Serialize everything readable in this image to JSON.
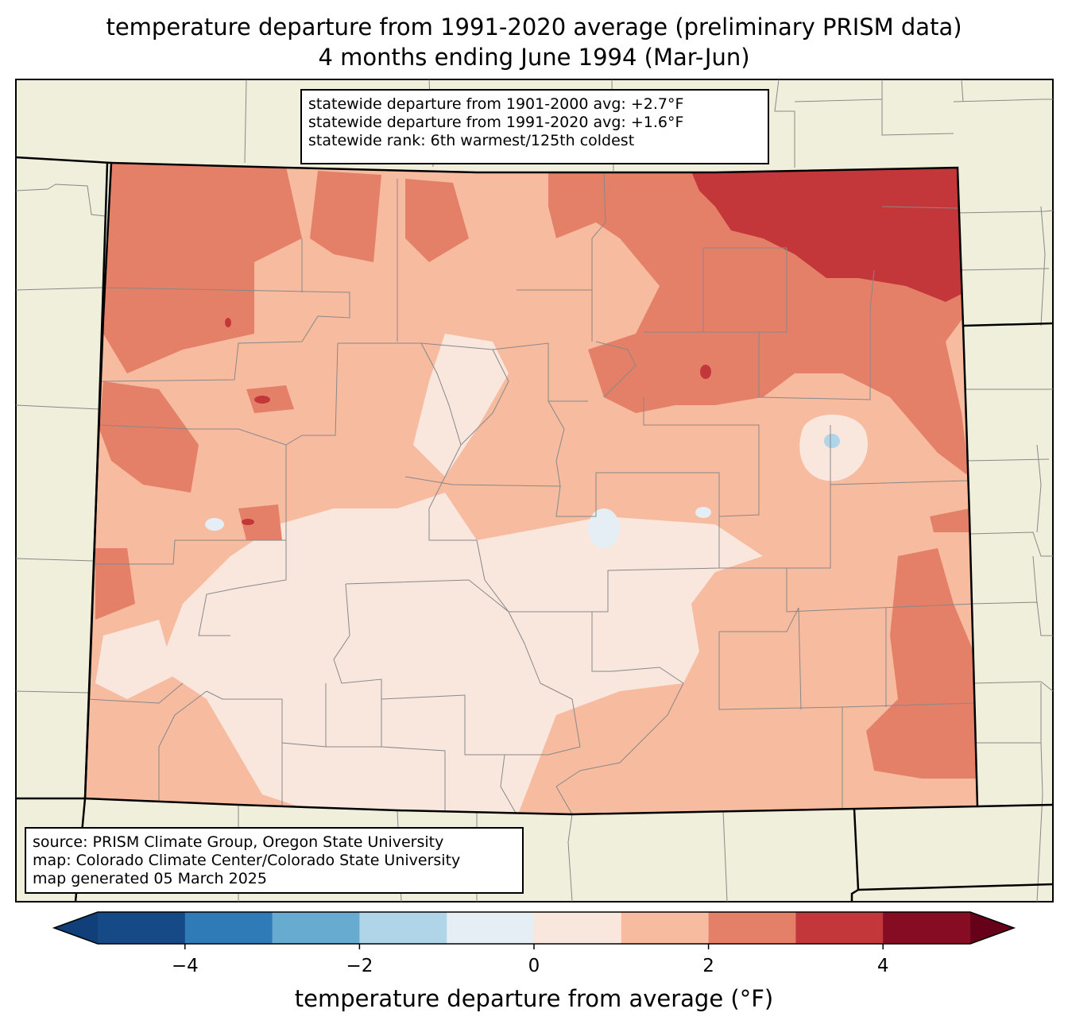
{
  "title": {
    "line1": "temperature departure from 1991-2020 average (preliminary PRISM data)",
    "line2": "4 months ending June 1994 (Mar-Jun)"
  },
  "stats": {
    "line1": "statewide departure from 1901-2000 avg: +2.7°F",
    "line2": "statewide departure from 1991-2020 avg: +1.6°F",
    "line3": "statewide rank: 6th warmest/125th coldest"
  },
  "source": {
    "line1": "source: PRISM Climate Group, Oregon State University",
    "line2": "map: Colorado Climate Center/Colorado State University",
    "line3": "map generated 05 March 2025"
  },
  "colorbar": {
    "label": "temperature departure from average (°F)",
    "min": -5,
    "max": 5,
    "step": 1,
    "ticks": [
      {
        "value": -4,
        "label": "−4"
      },
      {
        "value": -2,
        "label": "−2"
      },
      {
        "value": 0,
        "label": "0"
      },
      {
        "value": 2,
        "label": "2"
      },
      {
        "value": 4,
        "label": "4"
      }
    ],
    "colors": [
      "#103f7a",
      "#164a87",
      "#2f7bb8",
      "#68abd1",
      "#b0d4e8",
      "#e5eef5",
      "#f9e7de",
      "#f7bba0",
      "#e48068",
      "#c3373b",
      "#850c22",
      "#670019"
    ]
  },
  "map_colors": {
    "land_outside": "#f0efdc",
    "county_lines": "#888888",
    "state_lines": "#000000"
  }
}
